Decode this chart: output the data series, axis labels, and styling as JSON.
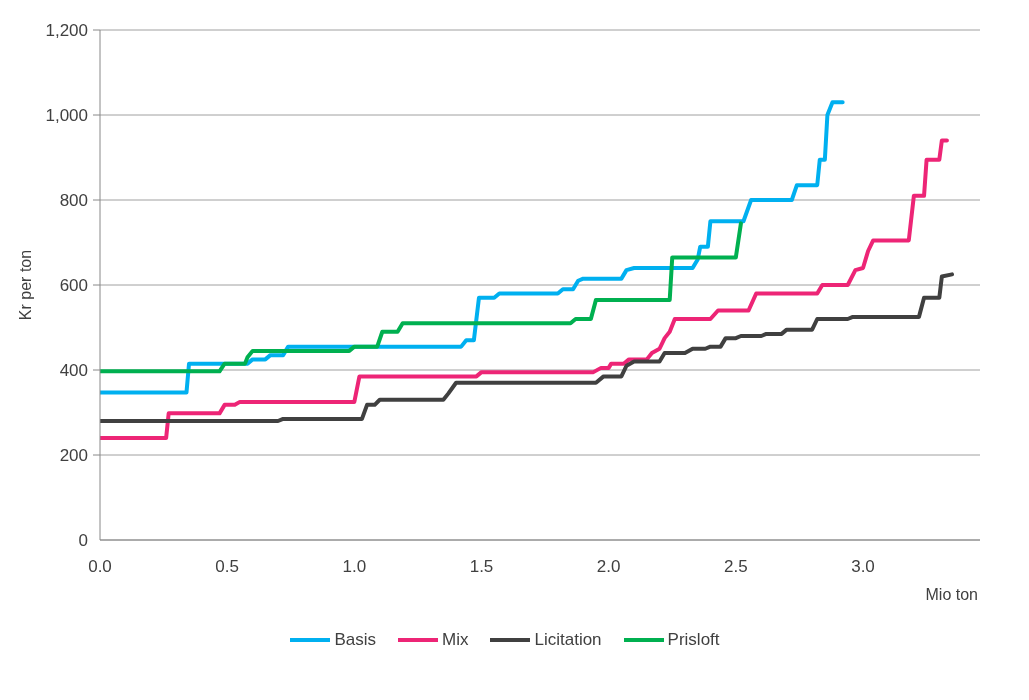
{
  "chart_data": {
    "type": "line",
    "xlabel": "Mio ton",
    "ylabel": "Kr per ton",
    "xlim": [
      0,
      3.46
    ],
    "xticks": [
      {
        "value": 0,
        "label": "0.0"
      },
      {
        "value": 0.5,
        "label": "0.5"
      },
      {
        "value": 1,
        "label": "1.0"
      },
      {
        "value": 1.5,
        "label": "1.5"
      },
      {
        "value": 2,
        "label": "2.0"
      },
      {
        "value": 2.5,
        "label": "2.5"
      },
      {
        "value": 3,
        "label": "3.0"
      }
    ],
    "ylim": [
      0,
      1200
    ],
    "yticks": [
      0,
      200,
      400,
      600,
      800,
      {
        "value": 1000,
        "label": "1,000"
      },
      {
        "value": 1200,
        "label": "1,200"
      }
    ],
    "grid": "y",
    "legend": "bottom",
    "marker": "none",
    "line_style": "solid",
    "series": [
      {
        "name": "Basis",
        "color": "#00b0f0",
        "x": [
          0,
          0.34,
          0.35,
          0.58,
          0.6,
          0.65,
          0.67,
          0.72,
          0.74,
          1.42,
          1.44,
          1.47,
          1.49,
          1.55,
          1.57,
          1.8,
          1.82,
          1.86,
          1.88,
          1.9,
          2.05,
          2.07,
          2.1,
          2.33,
          2.35,
          2.36,
          2.39,
          2.4,
          2.53,
          2.56,
          2.72,
          2.74,
          2.82,
          2.83,
          2.85,
          2.86,
          2.88,
          2.92
        ],
        "values": [
          347,
          347,
          415,
          415,
          425,
          425,
          435,
          435,
          455,
          455,
          470,
          470,
          570,
          570,
          580,
          580,
          590,
          590,
          610,
          615,
          615,
          635,
          640,
          640,
          660,
          690,
          690,
          750,
          750,
          800,
          800,
          835,
          835,
          895,
          895,
          1000,
          1030,
          1030
        ]
      },
      {
        "name": "Mix",
        "color": "#ed2576",
        "x": [
          0,
          0.26,
          0.27,
          0.47,
          0.49,
          0.53,
          0.55,
          1.0,
          1.02,
          1.48,
          1.5,
          1.94,
          1.97,
          2.0,
          2.01,
          2.06,
          2.08,
          2.15,
          2.17,
          2.2,
          2.22,
          2.24,
          2.26,
          2.4,
          2.43,
          2.55,
          2.58,
          2.82,
          2.84,
          2.94,
          2.97,
          3.0,
          3.02,
          3.04,
          3.18,
          3.2,
          3.24,
          3.25,
          3.3,
          3.31,
          3.33
        ],
        "values": [
          240,
          240,
          298,
          298,
          318,
          318,
          325,
          325,
          385,
          385,
          395,
          395,
          405,
          405,
          415,
          415,
          425,
          425,
          440,
          450,
          475,
          490,
          520,
          520,
          540,
          540,
          580,
          580,
          600,
          600,
          635,
          640,
          680,
          705,
          705,
          810,
          810,
          895,
          895,
          940,
          940
        ]
      },
      {
        "name": "Licitation",
        "color": "#404040",
        "x": [
          0,
          0.7,
          0.72,
          1.03,
          1.05,
          1.08,
          1.1,
          1.35,
          1.37,
          1.4,
          1.95,
          1.98,
          2.05,
          2.07,
          2.1,
          2.2,
          2.22,
          2.3,
          2.33,
          2.38,
          2.4,
          2.44,
          2.46,
          2.5,
          2.52,
          2.6,
          2.62,
          2.68,
          2.7,
          2.8,
          2.82,
          2.94,
          2.96,
          3.22,
          3.24,
          3.3,
          3.31,
          3.35
        ],
        "values": [
          280,
          280,
          285,
          285,
          318,
          318,
          330,
          330,
          345,
          370,
          370,
          385,
          385,
          410,
          420,
          420,
          440,
          440,
          450,
          450,
          455,
          455,
          475,
          475,
          480,
          480,
          485,
          485,
          495,
          495,
          520,
          520,
          525,
          525,
          570,
          570,
          620,
          625
        ]
      },
      {
        "name": "Prisloft",
        "color": "#00b050",
        "x": [
          0,
          0.47,
          0.49,
          0.57,
          0.58,
          0.6,
          0.98,
          1.0,
          1.09,
          1.11,
          1.17,
          1.19,
          1.85,
          1.87,
          1.93,
          1.95,
          2.24,
          2.25,
          2.5,
          2.52
        ],
        "values": [
          397,
          397,
          415,
          415,
          430,
          445,
          445,
          455,
          455,
          490,
          490,
          510,
          510,
          520,
          520,
          565,
          565,
          665,
          665,
          745
        ]
      }
    ]
  }
}
